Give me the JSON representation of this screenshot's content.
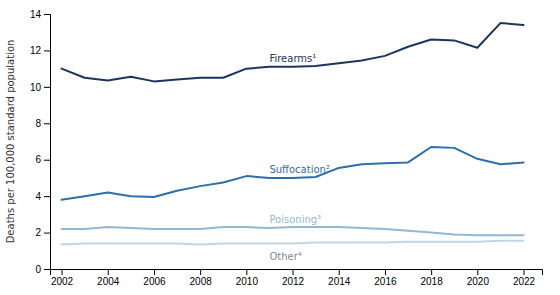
{
  "chart_data": {
    "type": "line",
    "y_label": "Deaths per 100,000 standard population",
    "x": [
      2002,
      2003,
      2004,
      2005,
      2006,
      2007,
      2008,
      2009,
      2010,
      2011,
      2012,
      2013,
      2014,
      2015,
      2016,
      2017,
      2018,
      2019,
      2020,
      2021,
      2022
    ],
    "series": [
      {
        "name": "Firearms¹",
        "color": "#1c3560",
        "values": [
          11.0,
          10.5,
          10.35,
          10.55,
          10.3,
          10.4,
          10.5,
          10.5,
          11.0,
          11.1,
          11.1,
          11.15,
          11.3,
          11.45,
          11.7,
          12.2,
          12.6,
          12.55,
          12.15,
          13.5,
          13.4
        ]
      },
      {
        "name": "Suffocation²",
        "color": "#2f6fa8",
        "values": [
          3.8,
          4.0,
          4.2,
          4.0,
          3.95,
          4.3,
          4.55,
          4.75,
          5.1,
          5.0,
          5.0,
          5.05,
          5.55,
          5.75,
          5.8,
          5.85,
          6.7,
          6.65,
          6.05,
          5.75,
          5.85
        ]
      },
      {
        "name": "Poisoning³",
        "color": "#92b8d8",
        "values": [
          2.2,
          2.2,
          2.3,
          2.25,
          2.2,
          2.2,
          2.2,
          2.3,
          2.3,
          2.25,
          2.3,
          2.3,
          2.3,
          2.25,
          2.2,
          2.1,
          2.0,
          1.9,
          1.85,
          1.85,
          1.85
        ]
      },
      {
        "name": "Other⁴",
        "color": "#c0d5e8",
        "values": [
          1.35,
          1.4,
          1.4,
          1.4,
          1.4,
          1.4,
          1.35,
          1.4,
          1.4,
          1.4,
          1.4,
          1.45,
          1.45,
          1.45,
          1.45,
          1.5,
          1.5,
          1.5,
          1.5,
          1.55,
          1.55
        ]
      }
    ],
    "xlim": [
      2001.5,
      2022.8
    ],
    "ylim": [
      0,
      14
    ],
    "xticks": [
      2002,
      2004,
      2006,
      2008,
      2010,
      2012,
      2014,
      2016,
      2018,
      2020,
      2022
    ],
    "yticks": [
      0,
      2,
      4,
      6,
      8,
      10,
      12,
      14
    ],
    "grid": false
  }
}
